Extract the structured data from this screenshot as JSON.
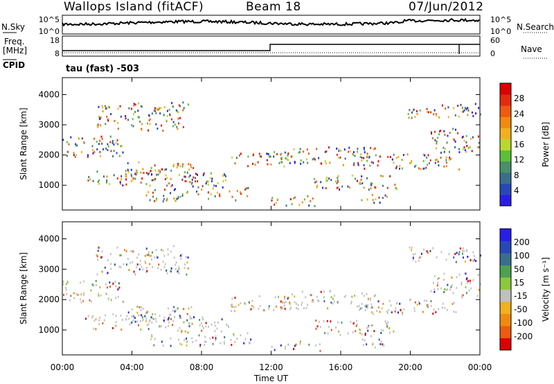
{
  "header": {
    "station": "Wallops Island (fitACF)",
    "beam": "Beam 18",
    "date": "07/Jun/2012"
  },
  "noise_panel": {
    "left_label": "N.Sky",
    "right_label": "N.Search",
    "ticks_left": [
      "10^5",
      "10^0"
    ],
    "ticks_right": [
      "10^5",
      "10^0"
    ]
  },
  "freq_panel": {
    "left_label_1": "Freq.",
    "left_label_2": "[MHz]",
    "cpid_label": "CPID",
    "right_label": "Nave",
    "ticks_left": [
      "18",
      "8"
    ],
    "ticks_right": [
      "60",
      "0"
    ],
    "cpid_text": "tau (fast) -503"
  },
  "colors": {
    "power": [
      "#2a1ee6",
      "#2848b8",
      "#3a6f8c",
      "#4a8f6a",
      "#5cbf3a",
      "#b8d830",
      "#f0b020",
      "#f08a10",
      "#ee5a10",
      "#e42a10",
      "#dd0000"
    ],
    "velocity": [
      "#2a1ee6",
      "#2848b8",
      "#3a6f8c",
      "#4fa050",
      "#8cc83c",
      "#c0c0c0",
      "#f0b020",
      "#f08a10",
      "#ee5a10",
      "#dd0000"
    ]
  },
  "chart_data": [
    {
      "type": "heatmap",
      "title": "Power",
      "xlabel": "",
      "ylabel": "Slant Range [km]",
      "yticks": [
        "1000",
        "2000",
        "3000",
        "4000"
      ],
      "ylim": [
        180,
        4560
      ],
      "colorbar_label": "Power [dB]",
      "colorbar_ticks": [
        "4",
        "8",
        "12",
        "16",
        "20",
        "24",
        "28"
      ]
    },
    {
      "type": "heatmap",
      "title": "Velocity",
      "xlabel": "Time UT",
      "ylabel": "Slant Range [km]",
      "xticks": [
        "00:00",
        "04:00",
        "08:00",
        "12:00",
        "16:00",
        "20:00",
        "00:00"
      ],
      "yticks": [
        "1000",
        "2000",
        "3000",
        "4000"
      ],
      "ylim": [
        180,
        4560
      ],
      "colorbar_label": "Velocity [m s⁻¹]",
      "colorbar_ticks": [
        "200",
        "100",
        "50",
        "15",
        "-15",
        "-50",
        "-100",
        "-200"
      ]
    }
  ]
}
